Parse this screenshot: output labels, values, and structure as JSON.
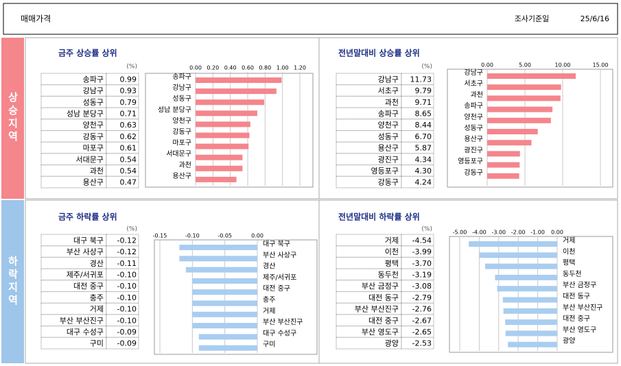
{
  "header": {
    "title": "매매가격",
    "date_label": "조사기준일",
    "date": "25/6/16"
  },
  "regions": [
    "상승지역",
    "하락지역"
  ],
  "chart_data": [
    {
      "type": "bar",
      "orientation": "horizontal",
      "title": "금주 상승률 상위",
      "unit": "(%)",
      "categories": [
        "송파구",
        "강남구",
        "성동구",
        "성남 분당구",
        "양천구",
        "강동구",
        "마포구",
        "서대문구",
        "과천",
        "용산구"
      ],
      "values": [
        0.99,
        0.93,
        0.79,
        0.71,
        0.63,
        0.62,
        0.61,
        0.54,
        0.54,
        0.47
      ],
      "value_labels": [
        "0.99",
        "0.93",
        "0.79",
        "0.71",
        "0.63",
        "0.62",
        "0.61",
        "0.54",
        "0.54",
        "0.47"
      ],
      "color": "#f4868c",
      "xlim": [
        0,
        1.2
      ],
      "xticks": [
        {
          "value": 0,
          "label": "0.00"
        },
        {
          "value": 0.2,
          "label": "0.20"
        },
        {
          "value": 0.4,
          "label": "0.40"
        },
        {
          "value": 0.6,
          "label": "0.60"
        },
        {
          "value": 0.8,
          "label": "0.80"
        },
        {
          "value": 1,
          "label": "1.00"
        },
        {
          "value": 1.2,
          "label": "1.20"
        }
      ],
      "grid": true
    },
    {
      "type": "bar",
      "orientation": "horizontal",
      "title": "전년말대비 상승률 상위",
      "unit": "(%)",
      "categories": [
        "강남구",
        "서초구",
        "과천",
        "송파구",
        "양천구",
        "성동구",
        "용산구",
        "광진구",
        "영등포구",
        "강동구"
      ],
      "values": [
        11.73,
        9.79,
        9.71,
        8.65,
        8.44,
        6.7,
        5.87,
        4.34,
        4.3,
        4.24
      ],
      "value_labels": [
        "11.73",
        "9.79",
        "9.71",
        "8.65",
        "8.44",
        "6.70",
        "5.87",
        "4.34",
        "4.30",
        "4.24"
      ],
      "color": "#f4868c",
      "xlim": [
        0,
        15
      ],
      "xticks": [
        {
          "value": 0,
          "label": "0.00"
        },
        {
          "value": 5,
          "label": "5.00"
        },
        {
          "value": 10,
          "label": "10.00"
        },
        {
          "value": 15,
          "label": "15.00"
        }
      ],
      "grid": true
    },
    {
      "type": "bar",
      "orientation": "horizontal",
      "title": "금주 하락률 상위",
      "unit": "(%)",
      "categories": [
        "대구 북구",
        "부산 사상구",
        "경산",
        "제주/서귀포",
        "대전 중구",
        "충주",
        "거제",
        "부산 부산진구",
        "대구 수성구",
        "구미"
      ],
      "values": [
        -0.12,
        -0.12,
        -0.11,
        -0.1,
        -0.1,
        -0.1,
        -0.1,
        -0.1,
        -0.09,
        -0.09
      ],
      "value_labels": [
        "-0.12",
        "-0.12",
        "-0.11",
        "-0.10",
        "-0.10",
        "-0.10",
        "-0.10",
        "-0.10",
        "-0.09",
        "-0.09"
      ],
      "color": "#a9cdf0",
      "xlim": [
        -0.15,
        0
      ],
      "xticks": [
        {
          "value": -0.15,
          "label": "-0.15"
        },
        {
          "value": -0.1,
          "label": "-0.10"
        },
        {
          "value": -0.05,
          "label": "-0.05"
        },
        {
          "value": 0,
          "label": "0.00"
        }
      ],
      "grid": true
    },
    {
      "type": "bar",
      "orientation": "horizontal",
      "title": "전년말대비 하락률 상위",
      "unit": "(%)",
      "categories": [
        "거제",
        "이천",
        "평택",
        "동두천",
        "부산 금정구",
        "대전 동구",
        "부산 부산진구",
        "대전 중구",
        "부산 영도구",
        "광양"
      ],
      "values": [
        -4.54,
        -3.99,
        -3.7,
        -3.19,
        -3.08,
        -2.79,
        -2.76,
        -2.67,
        -2.65,
        -2.53
      ],
      "value_labels": [
        "-4.54",
        "-3.99",
        "-3.70",
        "-3.19",
        "-3.08",
        "-2.79",
        "-2.76",
        "-2.67",
        "-2.65",
        "-2.53"
      ],
      "color": "#a9cdf0",
      "xlim": [
        -5,
        0
      ],
      "xticks": [
        {
          "value": -5,
          "label": "-5.00"
        },
        {
          "value": -4,
          "label": "-4.00"
        },
        {
          "value": -3,
          "label": "-3.00"
        },
        {
          "value": -2,
          "label": "-2.00"
        },
        {
          "value": -1,
          "label": "-1.00"
        },
        {
          "value": 0,
          "label": "0.00"
        }
      ],
      "grid": true
    }
  ]
}
